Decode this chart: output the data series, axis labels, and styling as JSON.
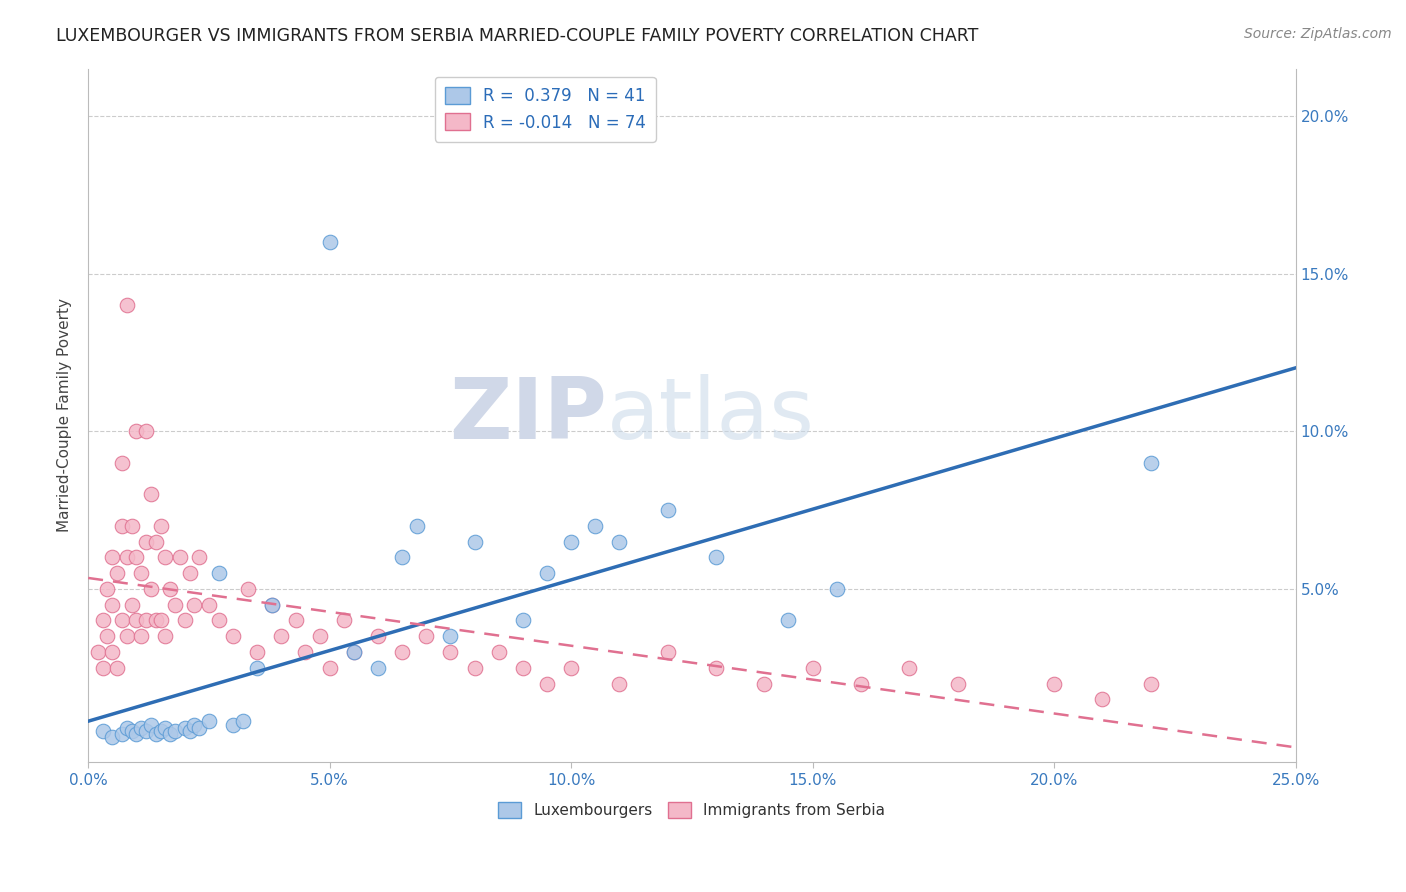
{
  "title": "LUXEMBOURGER VS IMMIGRANTS FROM SERBIA MARRIED-COUPLE FAMILY POVERTY CORRELATION CHART",
  "source": "Source: ZipAtlas.com",
  "ylabel": "Married-Couple Family Poverty",
  "xlabel": "",
  "xlim": [
    0.0,
    0.25
  ],
  "ylim": [
    -0.005,
    0.215
  ],
  "xticks": [
    0.0,
    0.05,
    0.1,
    0.15,
    0.2,
    0.25
  ],
  "yticks": [
    0.05,
    0.1,
    0.15,
    0.2
  ],
  "xticklabels": [
    "0.0%",
    "5.0%",
    "10.0%",
    "15.0%",
    "20.0%",
    "25.0%"
  ],
  "right_yticklabels": [
    "5.0%",
    "10.0%",
    "15.0%",
    "20.0%"
  ],
  "series1_color": "#adc8e8",
  "series1_edge_color": "#5b9bd5",
  "series2_color": "#f4b8c8",
  "series2_edge_color": "#e07090",
  "R1": 0.379,
  "N1": 41,
  "R2": -0.014,
  "N2": 74,
  "legend_label1": "Luxembourgers",
  "legend_label2": "Immigrants from Serbia",
  "watermark_zip": "ZIP",
  "watermark_atlas": "atlas",
  "line1_color": "#2e6db4",
  "line2_color": "#e07090",
  "scatter1_x": [
    0.003,
    0.005,
    0.007,
    0.008,
    0.009,
    0.01,
    0.011,
    0.012,
    0.013,
    0.014,
    0.015,
    0.016,
    0.017,
    0.018,
    0.02,
    0.021,
    0.022,
    0.023,
    0.025,
    0.027,
    0.03,
    0.032,
    0.035,
    0.038,
    0.05,
    0.055,
    0.06,
    0.065,
    0.068,
    0.075,
    0.08,
    0.09,
    0.095,
    0.1,
    0.105,
    0.11,
    0.12,
    0.13,
    0.145,
    0.155,
    0.22
  ],
  "scatter1_y": [
    0.005,
    0.003,
    0.004,
    0.006,
    0.005,
    0.004,
    0.006,
    0.005,
    0.007,
    0.004,
    0.005,
    0.006,
    0.004,
    0.005,
    0.006,
    0.005,
    0.007,
    0.006,
    0.008,
    0.055,
    0.007,
    0.008,
    0.025,
    0.045,
    0.16,
    0.03,
    0.025,
    0.06,
    0.07,
    0.035,
    0.065,
    0.04,
    0.055,
    0.065,
    0.07,
    0.065,
    0.075,
    0.06,
    0.04,
    0.05,
    0.09
  ],
  "scatter2_x": [
    0.002,
    0.003,
    0.003,
    0.004,
    0.004,
    0.005,
    0.005,
    0.005,
    0.006,
    0.006,
    0.007,
    0.007,
    0.007,
    0.008,
    0.008,
    0.008,
    0.009,
    0.009,
    0.01,
    0.01,
    0.01,
    0.011,
    0.011,
    0.012,
    0.012,
    0.012,
    0.013,
    0.013,
    0.014,
    0.014,
    0.015,
    0.015,
    0.016,
    0.016,
    0.017,
    0.018,
    0.019,
    0.02,
    0.021,
    0.022,
    0.023,
    0.025,
    0.027,
    0.03,
    0.033,
    0.035,
    0.038,
    0.04,
    0.043,
    0.045,
    0.048,
    0.05,
    0.053,
    0.055,
    0.06,
    0.065,
    0.07,
    0.075,
    0.08,
    0.085,
    0.09,
    0.095,
    0.1,
    0.11,
    0.12,
    0.13,
    0.14,
    0.15,
    0.16,
    0.17,
    0.18,
    0.2,
    0.21,
    0.22
  ],
  "scatter2_y": [
    0.03,
    0.025,
    0.04,
    0.035,
    0.05,
    0.03,
    0.045,
    0.06,
    0.025,
    0.055,
    0.04,
    0.07,
    0.09,
    0.035,
    0.06,
    0.14,
    0.045,
    0.07,
    0.04,
    0.06,
    0.1,
    0.035,
    0.055,
    0.04,
    0.065,
    0.1,
    0.05,
    0.08,
    0.04,
    0.065,
    0.04,
    0.07,
    0.035,
    0.06,
    0.05,
    0.045,
    0.06,
    0.04,
    0.055,
    0.045,
    0.06,
    0.045,
    0.04,
    0.035,
    0.05,
    0.03,
    0.045,
    0.035,
    0.04,
    0.03,
    0.035,
    0.025,
    0.04,
    0.03,
    0.035,
    0.03,
    0.035,
    0.03,
    0.025,
    0.03,
    0.025,
    0.02,
    0.025,
    0.02,
    0.03,
    0.025,
    0.02,
    0.025,
    0.02,
    0.025,
    0.02,
    0.02,
    0.015,
    0.02
  ]
}
